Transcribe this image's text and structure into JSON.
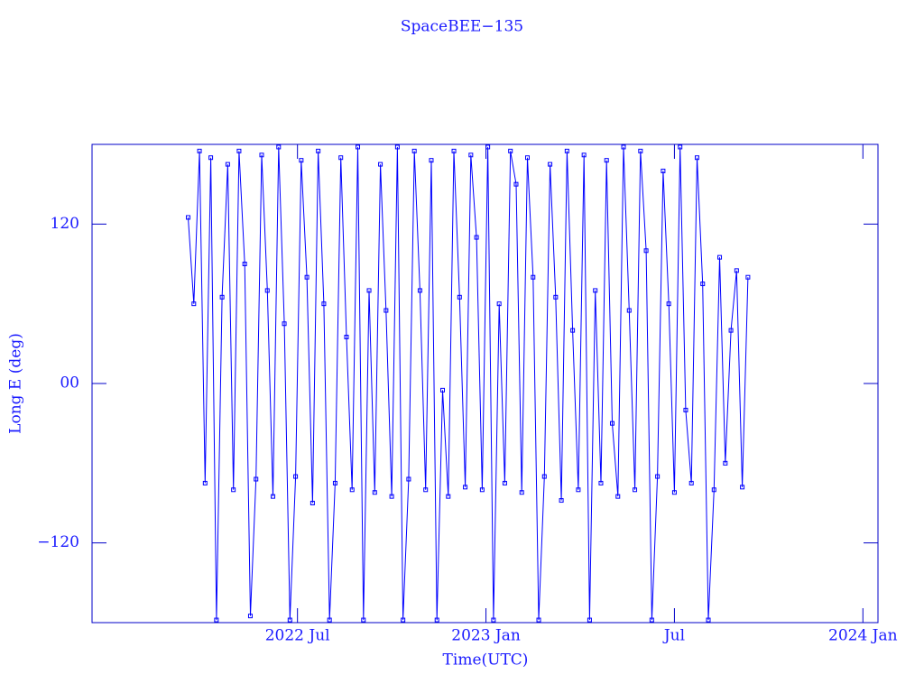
{
  "chart_data": {
    "type": "line",
    "title": "SpaceBEE−135",
    "xlabel": "Time(UTC)",
    "ylabel": "Long E (deg)",
    "xlim": [
      2021.955,
      2024.04
    ],
    "ylim": [
      -180,
      180
    ],
    "xticks": [
      {
        "value": 2022.5,
        "label": "2022 Jul"
      },
      {
        "value": 2023.0,
        "label": "2023 Jan"
      },
      {
        "value": 2023.5,
        "label": "Jul"
      },
      {
        "value": 2024.0,
        "label": "2024 Jan"
      }
    ],
    "yticks": [
      {
        "value": -120,
        "label": "−120"
      },
      {
        "value": 0,
        "label": "00"
      },
      120
    ],
    "series": [
      {
        "color": "#0000ff",
        "x": [
          2022.21,
          2022.225,
          2022.24,
          2022.255,
          2022.27,
          2022.285,
          2022.3,
          2022.315,
          2022.33,
          2022.345,
          2022.36,
          2022.375,
          2022.39,
          2022.405,
          2022.42,
          2022.435,
          2022.45,
          2022.465,
          2022.48,
          2022.495,
          2022.51,
          2022.525,
          2022.54,
          2022.555,
          2022.57,
          2022.585,
          2022.6,
          2022.615,
          2022.63,
          2022.645,
          2022.66,
          2022.675,
          2022.69,
          2022.705,
          2022.72,
          2022.735,
          2022.75,
          2022.765,
          2022.78,
          2022.795,
          2022.81,
          2022.825,
          2022.84,
          2022.855,
          2022.87,
          2022.885,
          2022.9,
          2022.915,
          2022.93,
          2022.945,
          2022.96,
          2022.975,
          2022.99,
          2023.005,
          2023.02,
          2023.035,
          2023.05,
          2023.065,
          2023.08,
          2023.095,
          2023.11,
          2023.125,
          2023.14,
          2023.155,
          2023.17,
          2023.185,
          2023.2,
          2023.215,
          2023.23,
          2023.245,
          2023.26,
          2023.275,
          2023.29,
          2023.305,
          2023.32,
          2023.335,
          2023.35,
          2023.365,
          2023.38,
          2023.395,
          2023.41,
          2023.425,
          2023.44,
          2023.455,
          2023.47,
          2023.485,
          2023.5,
          2023.515,
          2023.53,
          2023.545,
          2023.56,
          2023.575,
          2023.59,
          2023.605,
          2023.62,
          2023.635,
          2023.65,
          2023.665,
          2023.68,
          2023.695
        ],
        "values": [
          125,
          60,
          175,
          -75,
          170,
          -178,
          65,
          165,
          -80,
          175,
          90,
          -175,
          -72,
          172,
          70,
          -85,
          178,
          45,
          -178,
          -70,
          168,
          80,
          -90,
          175,
          60,
          -178,
          -75,
          170,
          35,
          -80,
          178,
          -178,
          70,
          -82,
          165,
          55,
          -85,
          178,
          -178,
          -72,
          175,
          70,
          -80,
          168,
          -178,
          -5,
          -85,
          175,
          65,
          -78,
          172,
          110,
          -80,
          178,
          -178,
          60,
          -75,
          175,
          150,
          -82,
          170,
          80,
          -178,
          -70,
          165,
          65,
          -88,
          175,
          40,
          -80,
          172,
          -178,
          70,
          -75,
          168,
          -30,
          -85,
          178,
          55,
          -80,
          175,
          100,
          -178,
          -70,
          160,
          60,
          -82,
          178,
          -20,
          -75,
          170,
          75,
          -178,
          -80,
          95,
          -60,
          40,
          85,
          -78,
          80
        ]
      }
    ]
  }
}
